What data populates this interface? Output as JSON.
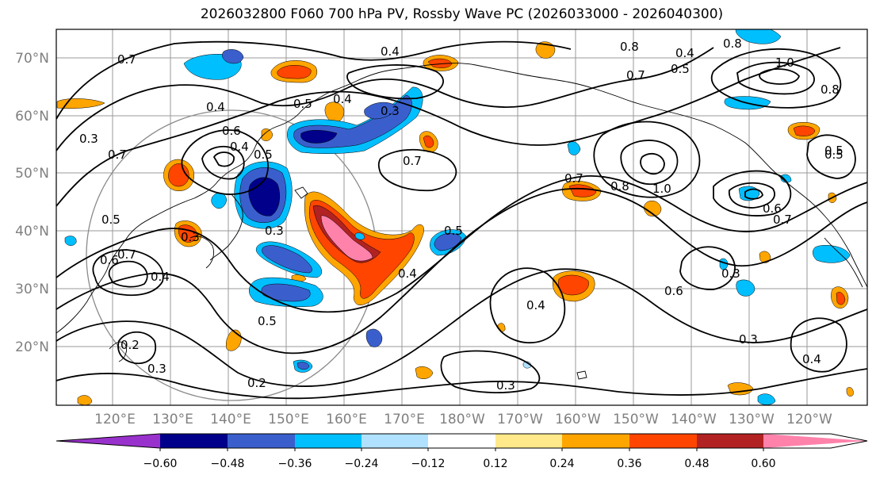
{
  "title": "2026032800 F060 700 hPa PV, Rossby Wave PC (2026033000 - 2026040300)",
  "lat_labels": [
    "70°N",
    "60°N",
    "50°N",
    "40°N",
    "30°N",
    "20°N"
  ],
  "lon_labels": [
    "120°E",
    "130°E",
    "140°E",
    "150°E",
    "160°E",
    "170°E",
    "180°W",
    "170°W",
    "160°W",
    "150°W",
    "140°W",
    "130°W",
    "120°W"
  ],
  "colorbar": {
    "ticks": [
      "−0.60",
      "−0.48",
      "−0.36",
      "−0.24",
      "−0.12",
      "0.12",
      "0.24",
      "0.36",
      "0.48",
      "0.60"
    ],
    "colors": [
      "#9932cc",
      "#00008b",
      "#3a5fcd",
      "#00bfff",
      "#b0e2ff",
      "#ffffff",
      "#ffe98a",
      "#ffa500",
      "#ff4500",
      "#b22222",
      "#ff82ab"
    ]
  },
  "contour_labels": [
    "0.7",
    "0.4",
    "0.4",
    "0.5",
    "0.8",
    "0.4",
    "0.8",
    "1.0",
    "0.5",
    "0.7",
    "0.5",
    "0.3",
    "0.3",
    "0.4",
    "0.7",
    "0.4",
    "0.5",
    "0.7",
    "0.6",
    "0.8",
    "0.7",
    "0.8",
    "1.0",
    "0.5",
    "0.3",
    "0.5",
    "0.6",
    "0.6",
    "0.7",
    "0.7",
    "0.3",
    "0.4",
    "0.5",
    "0.4",
    "0.3",
    "0.6",
    "0.4",
    "0.2",
    "0.3",
    "0.2",
    "0.4",
    "0.3",
    "0.5",
    "0.3"
  ]
}
